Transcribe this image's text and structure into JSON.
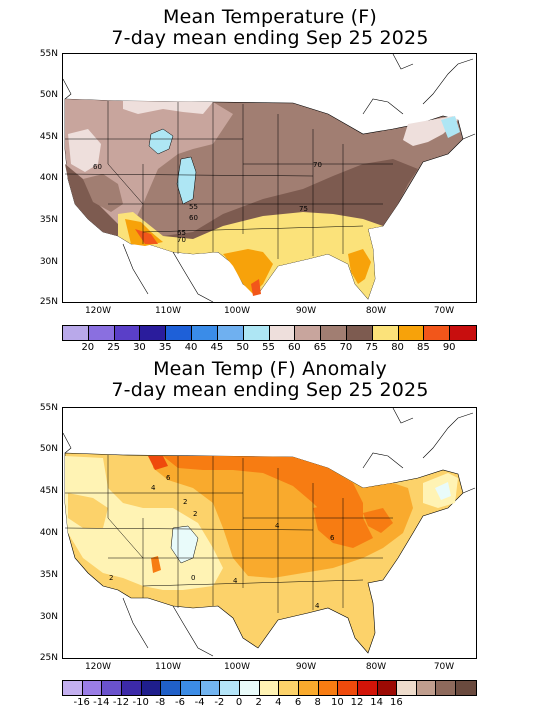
{
  "map1": {
    "title_line1": "Mean Temperature (F)",
    "title_line2": "7-day mean ending Sep 25 2025",
    "lat_labels": [
      "55N",
      "50N",
      "45N",
      "40N",
      "35N",
      "30N",
      "25N"
    ],
    "lon_labels": [
      "120W",
      "110W",
      "100W",
      "90W",
      "80W",
      "70W"
    ],
    "colorbar": {
      "colors": [
        "#b9a9ea",
        "#8a6fe0",
        "#5a3fc8",
        "#2a1c9c",
        "#1e60d8",
        "#3a8ce8",
        "#6fb0f0",
        "#aee6f4",
        "#eedfdc",
        "#c8a59d",
        "#a17e72",
        "#7d5b50",
        "#fbe27a",
        "#f7a20a",
        "#f2561a",
        "#c80e0e"
      ],
      "labels": [
        "20",
        "25",
        "30",
        "35",
        "40",
        "45",
        "50",
        "55",
        "60",
        "65",
        "70",
        "75",
        "80",
        "85",
        "90"
      ]
    },
    "contour_labels": [
      "60",
      "70",
      "75",
      "55",
      "60",
      "65",
      "70"
    ]
  },
  "map2": {
    "title_line1": "Mean Temp (F) Anomaly",
    "title_line2": "7-day mean ending Sep 25 2025",
    "lat_labels": [
      "55N",
      "50N",
      "45N",
      "40N",
      "35N",
      "30N",
      "25N"
    ],
    "lon_labels": [
      "120W",
      "110W",
      "100W",
      "90W",
      "80W",
      "70W"
    ],
    "colorbar": {
      "colors": [
        "#c4b0f0",
        "#9a7de6",
        "#6a52cc",
        "#3c2aa8",
        "#1f1e8c",
        "#2060c8",
        "#3c8ce6",
        "#72b4f0",
        "#b4e4f8",
        "#e9fbfa",
        "#fff3b4",
        "#fcd26a",
        "#f9aa2d",
        "#f77c12",
        "#ef4a0c",
        "#d21408",
        "#9c0a04",
        "#eedccc",
        "#c09e8e",
        "#8e6a5c",
        "#6a4a3e"
      ],
      "labels": [
        "-16",
        "-14",
        "-12",
        "-10",
        "-8",
        "-6",
        "-4",
        "-2",
        "0",
        "2",
        "4",
        "6",
        "8",
        "10",
        "12",
        "14",
        "16"
      ]
    },
    "contour_labels": [
      "6",
      "4",
      "2",
      "4",
      "6",
      "0",
      "2",
      "4",
      "4",
      "2"
    ]
  }
}
